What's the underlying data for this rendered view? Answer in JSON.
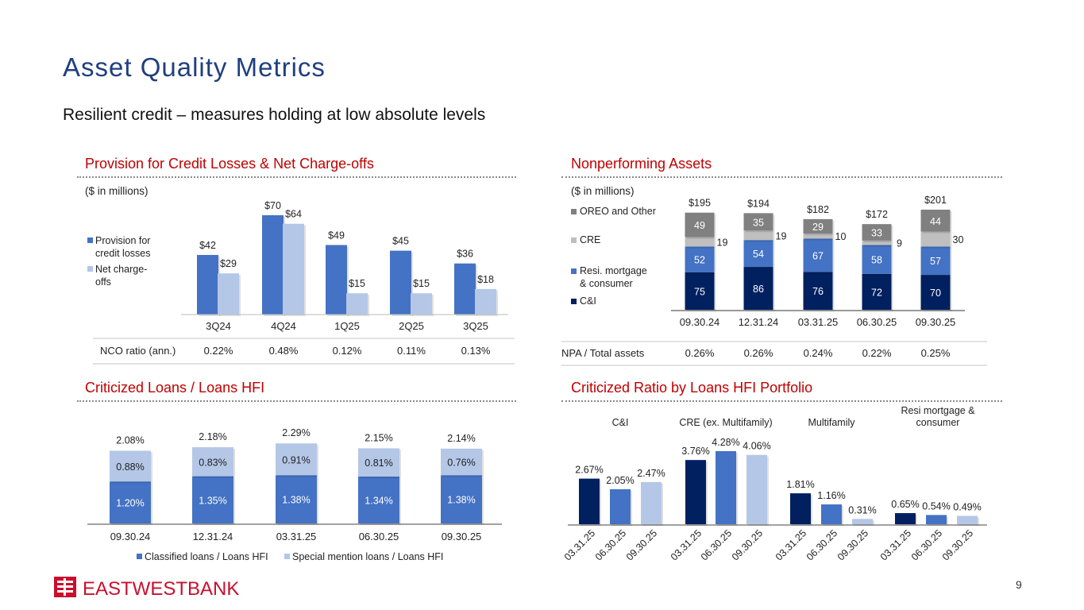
{
  "title": "Asset Quality Metrics",
  "subtitle": "Resilient credit – measures holding at low absolute levels",
  "page_number": "9",
  "logo": {
    "text": "EastWestBank",
    "color": "#C8102E"
  },
  "colors": {
    "title": "#1F3F7F",
    "section": "#C00000",
    "navy": "#002060",
    "blue": "#4472C4",
    "lightblue": "#B4C7E7",
    "gray": "#808080",
    "lightgray": "#BFBFBF"
  },
  "chart_data": [
    {
      "id": "provision",
      "type": "bar",
      "title": "Provision for Credit Losses & Net Charge-offs",
      "unit_note": "($ in millions)",
      "categories": [
        "3Q24",
        "4Q24",
        "1Q25",
        "2Q25",
        "3Q25"
      ],
      "series": [
        {
          "name": "Provision for credit losses",
          "values": [
            42,
            70,
            49,
            45,
            36
          ],
          "labels": [
            "$42",
            "$70",
            "$49",
            "$45",
            "$36"
          ],
          "color": "#4472C4"
        },
        {
          "name": "Net charge-offs",
          "values": [
            29,
            64,
            15,
            15,
            18
          ],
          "labels": [
            "$29",
            "$64",
            "$15",
            "$15",
            "$18"
          ],
          "color": "#B4C7E7"
        }
      ],
      "table_row": {
        "label": "NCO ratio (ann.)",
        "values": [
          "0.22%",
          "0.48%",
          "0.12%",
          "0.11%",
          "0.13%"
        ]
      },
      "legend": "left"
    },
    {
      "id": "npa",
      "type": "bar",
      "stacked": true,
      "title": "Nonperforming Assets",
      "unit_note": "($ in millions)",
      "categories": [
        "09.30.24",
        "12.31.24",
        "03.31.25",
        "06.30.25",
        "09.30.25"
      ],
      "totals": [
        "$195",
        "$194",
        "$182",
        "$172",
        "$201"
      ],
      "series": [
        {
          "name": "C&I",
          "values": [
            75,
            86,
            76,
            72,
            70
          ],
          "color": "#002060"
        },
        {
          "name": "Resi. mortgage & consumer",
          "values": [
            52,
            54,
            67,
            58,
            57
          ],
          "color": "#4472C4"
        },
        {
          "name": "CRE",
          "values": [
            19,
            19,
            10,
            9,
            30
          ],
          "color": "#BFBFBF"
        },
        {
          "name": "OREO and Other",
          "values": [
            49,
            35,
            29,
            33,
            44
          ],
          "color": "#808080"
        }
      ],
      "table_row": {
        "label": "NPA / Total assets",
        "values": [
          "0.26%",
          "0.26%",
          "0.24%",
          "0.22%",
          "0.25%"
        ]
      },
      "legend": "left"
    },
    {
      "id": "criticized",
      "type": "bar",
      "stacked": true,
      "title": "Criticized Loans / Loans HFI",
      "categories": [
        "09.30.24",
        "12.31.24",
        "03.31.25",
        "06.30.25",
        "09.30.25"
      ],
      "totals": [
        "2.08%",
        "2.18%",
        "2.29%",
        "2.15%",
        "2.14%"
      ],
      "series": [
        {
          "name": "Classified loans / Loans HFI",
          "values": [
            1.2,
            1.35,
            1.38,
            1.34,
            1.38
          ],
          "labels": [
            "1.20%",
            "1.35%",
            "1.38%",
            "1.34%",
            "1.38%"
          ],
          "color": "#4472C4"
        },
        {
          "name": "Special mention loans / Loans HFI",
          "values": [
            0.88,
            0.83,
            0.91,
            0.81,
            0.76
          ],
          "labels": [
            "0.88%",
            "0.83%",
            "0.91%",
            "0.81%",
            "0.76%"
          ],
          "color": "#B4C7E7"
        }
      ],
      "legend": "bottom"
    },
    {
      "id": "portfolio",
      "type": "bar",
      "title": "Criticized Ratio by Loans HFI Portfolio",
      "groups": [
        {
          "name": "C&I",
          "x": [
            "03.31.25",
            "06.30.25",
            "09.30.25"
          ],
          "values": [
            2.67,
            2.05,
            2.47
          ],
          "labels": [
            "2.67%",
            "2.05%",
            "2.47%"
          ]
        },
        {
          "name": "CRE (ex. Multifamily)",
          "x": [
            "03.31.25",
            "06.30.25",
            "09.30.25"
          ],
          "values": [
            3.76,
            4.28,
            4.06
          ],
          "labels": [
            "3.76%",
            "4.28%",
            "4.06%"
          ]
        },
        {
          "name": "Multifamily",
          "x": [
            "03.31.25",
            "06.30.25",
            "09.30.25"
          ],
          "values": [
            1.81,
            1.16,
            0.31
          ],
          "labels": [
            "1.81%",
            "1.16%",
            "0.31%"
          ]
        },
        {
          "name": "Resi mortgage & consumer",
          "x": [
            "03.31.25",
            "06.30.25",
            "09.30.25"
          ],
          "values": [
            0.65,
            0.54,
            0.49
          ],
          "labels": [
            "0.65%",
            "0.54%",
            "0.49%"
          ]
        }
      ],
      "bar_colors": [
        "#002060",
        "#4472C4",
        "#B4C7E7"
      ]
    }
  ]
}
